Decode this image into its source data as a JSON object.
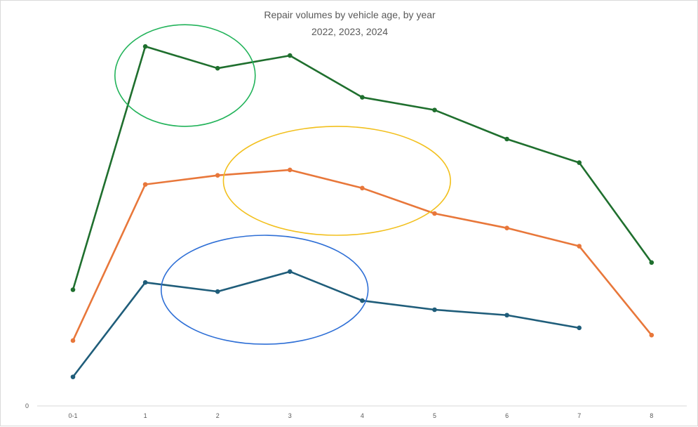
{
  "chart_data": {
    "type": "line",
    "title": "Repair volumes by vehicle age, by year",
    "subtitle": "2022, 2023, 2024",
    "xlabel": "",
    "ylabel": "",
    "categories": [
      "0-1",
      "1",
      "2",
      "3",
      "4",
      "5",
      "6",
      "7",
      "8"
    ],
    "y_tick_labels": [
      "0"
    ],
    "ylim": [
      0,
      100
    ],
    "grid": false,
    "legend": "none",
    "series": [
      {
        "color": "#1f6f2e",
        "values": [
          32,
          99,
          93,
          96.5,
          85,
          81.5,
          73.5,
          67,
          39.5
        ]
      },
      {
        "color": "#e8773a",
        "values": [
          18,
          61,
          63.5,
          65,
          60,
          53,
          49,
          44,
          19.5
        ]
      },
      {
        "color": "#1f5d7a",
        "values": [
          8,
          34,
          31.5,
          37,
          29,
          26.5,
          25,
          21.5,
          null
        ]
      }
    ],
    "annotations": [
      {
        "type": "ellipse",
        "color": "#22b35a",
        "x_center": 1.55,
        "y_center": 91,
        "x_radius": 0.97,
        "y_radius": 14
      },
      {
        "type": "ellipse",
        "color": "#f2c01e",
        "x_center": 3.65,
        "y_center": 62,
        "x_radius": 1.57,
        "y_radius": 15
      },
      {
        "type": "ellipse",
        "color": "#2e6fd6",
        "x_center": 2.65,
        "y_center": 32,
        "x_radius": 1.43,
        "y_radius": 15
      }
    ]
  }
}
